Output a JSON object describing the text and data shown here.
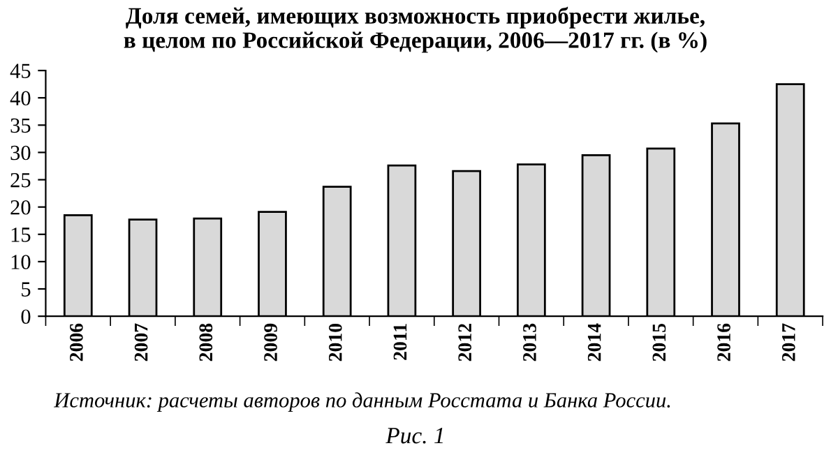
{
  "chart_data": {
    "type": "bar",
    "title": "Доля семей, имеющих возможность приобрести жилье,\nв целом по Российской Федерации, 2006—2017 гг. (в %)",
    "categories": [
      "2006",
      "2007",
      "2008",
      "2009",
      "2010",
      "2011",
      "2012",
      "2013",
      "2014",
      "2015",
      "2016",
      "2017"
    ],
    "values": [
      18.5,
      17.7,
      17.9,
      19.1,
      23.7,
      27.6,
      26.6,
      27.8,
      29.5,
      30.7,
      35.3,
      42.5
    ],
    "color": "#d9d9d9",
    "ylim": [
      0,
      45
    ],
    "yticks": [
      0,
      5,
      10,
      15,
      20,
      25,
      30,
      35,
      40,
      45
    ],
    "grid": false,
    "legend": false,
    "annotations": [
      "Источник: расчеты авторов по данным Росстата и Банка России.",
      "Рис. 1"
    ]
  }
}
